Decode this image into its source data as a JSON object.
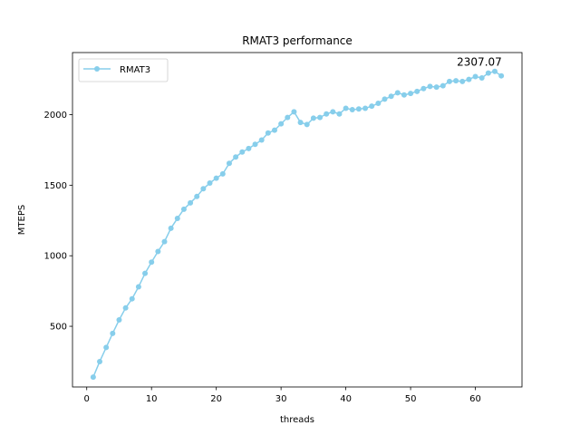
{
  "chart_data": {
    "type": "line",
    "title": "RMAT3 performance",
    "xlabel": "threads",
    "ylabel": "MTEPS",
    "xlim": [
      -2.2,
      67.2
    ],
    "ylim": [
      70,
      2440
    ],
    "xticks": [
      0,
      10,
      20,
      30,
      40,
      50,
      60
    ],
    "yticks": [
      500,
      1000,
      1500,
      2000
    ],
    "grid": false,
    "legend": "upper left",
    "colors": {
      "series": "#87ceeb",
      "axes": "#000000",
      "background": "#ffffff"
    },
    "x": [
      1,
      2,
      3,
      4,
      5,
      6,
      7,
      8,
      9,
      10,
      11,
      12,
      13,
      14,
      15,
      16,
      17,
      18,
      19,
      20,
      21,
      22,
      23,
      24,
      25,
      26,
      27,
      28,
      29,
      30,
      31,
      32,
      33,
      34,
      35,
      36,
      37,
      38,
      39,
      40,
      41,
      42,
      43,
      44,
      45,
      46,
      47,
      48,
      49,
      50,
      51,
      52,
      53,
      54,
      55,
      56,
      57,
      58,
      59,
      60,
      61,
      62,
      63,
      64
    ],
    "series": [
      {
        "name": "RMAT3",
        "values": [
          140,
          250,
          350,
          450,
          545,
          630,
          695,
          780,
          875,
          955,
          1030,
          1100,
          1195,
          1265,
          1330,
          1375,
          1420,
          1475,
          1515,
          1550,
          1580,
          1655,
          1700,
          1735,
          1760,
          1790,
          1820,
          1870,
          1890,
          1935,
          1980,
          2020,
          1945,
          1930,
          1975,
          1980,
          2005,
          2020,
          2005,
          2045,
          2035,
          2040,
          2045,
          2060,
          2080,
          2110,
          2130,
          2155,
          2140,
          2150,
          2165,
          2185,
          2200,
          2195,
          2205,
          2235,
          2240,
          2235,
          2250,
          2270,
          2260,
          2295,
          2307.07,
          2275
        ]
      }
    ],
    "annotations": [
      {
        "text": "2307.07",
        "x": 63,
        "y": 2307.07
      }
    ]
  }
}
